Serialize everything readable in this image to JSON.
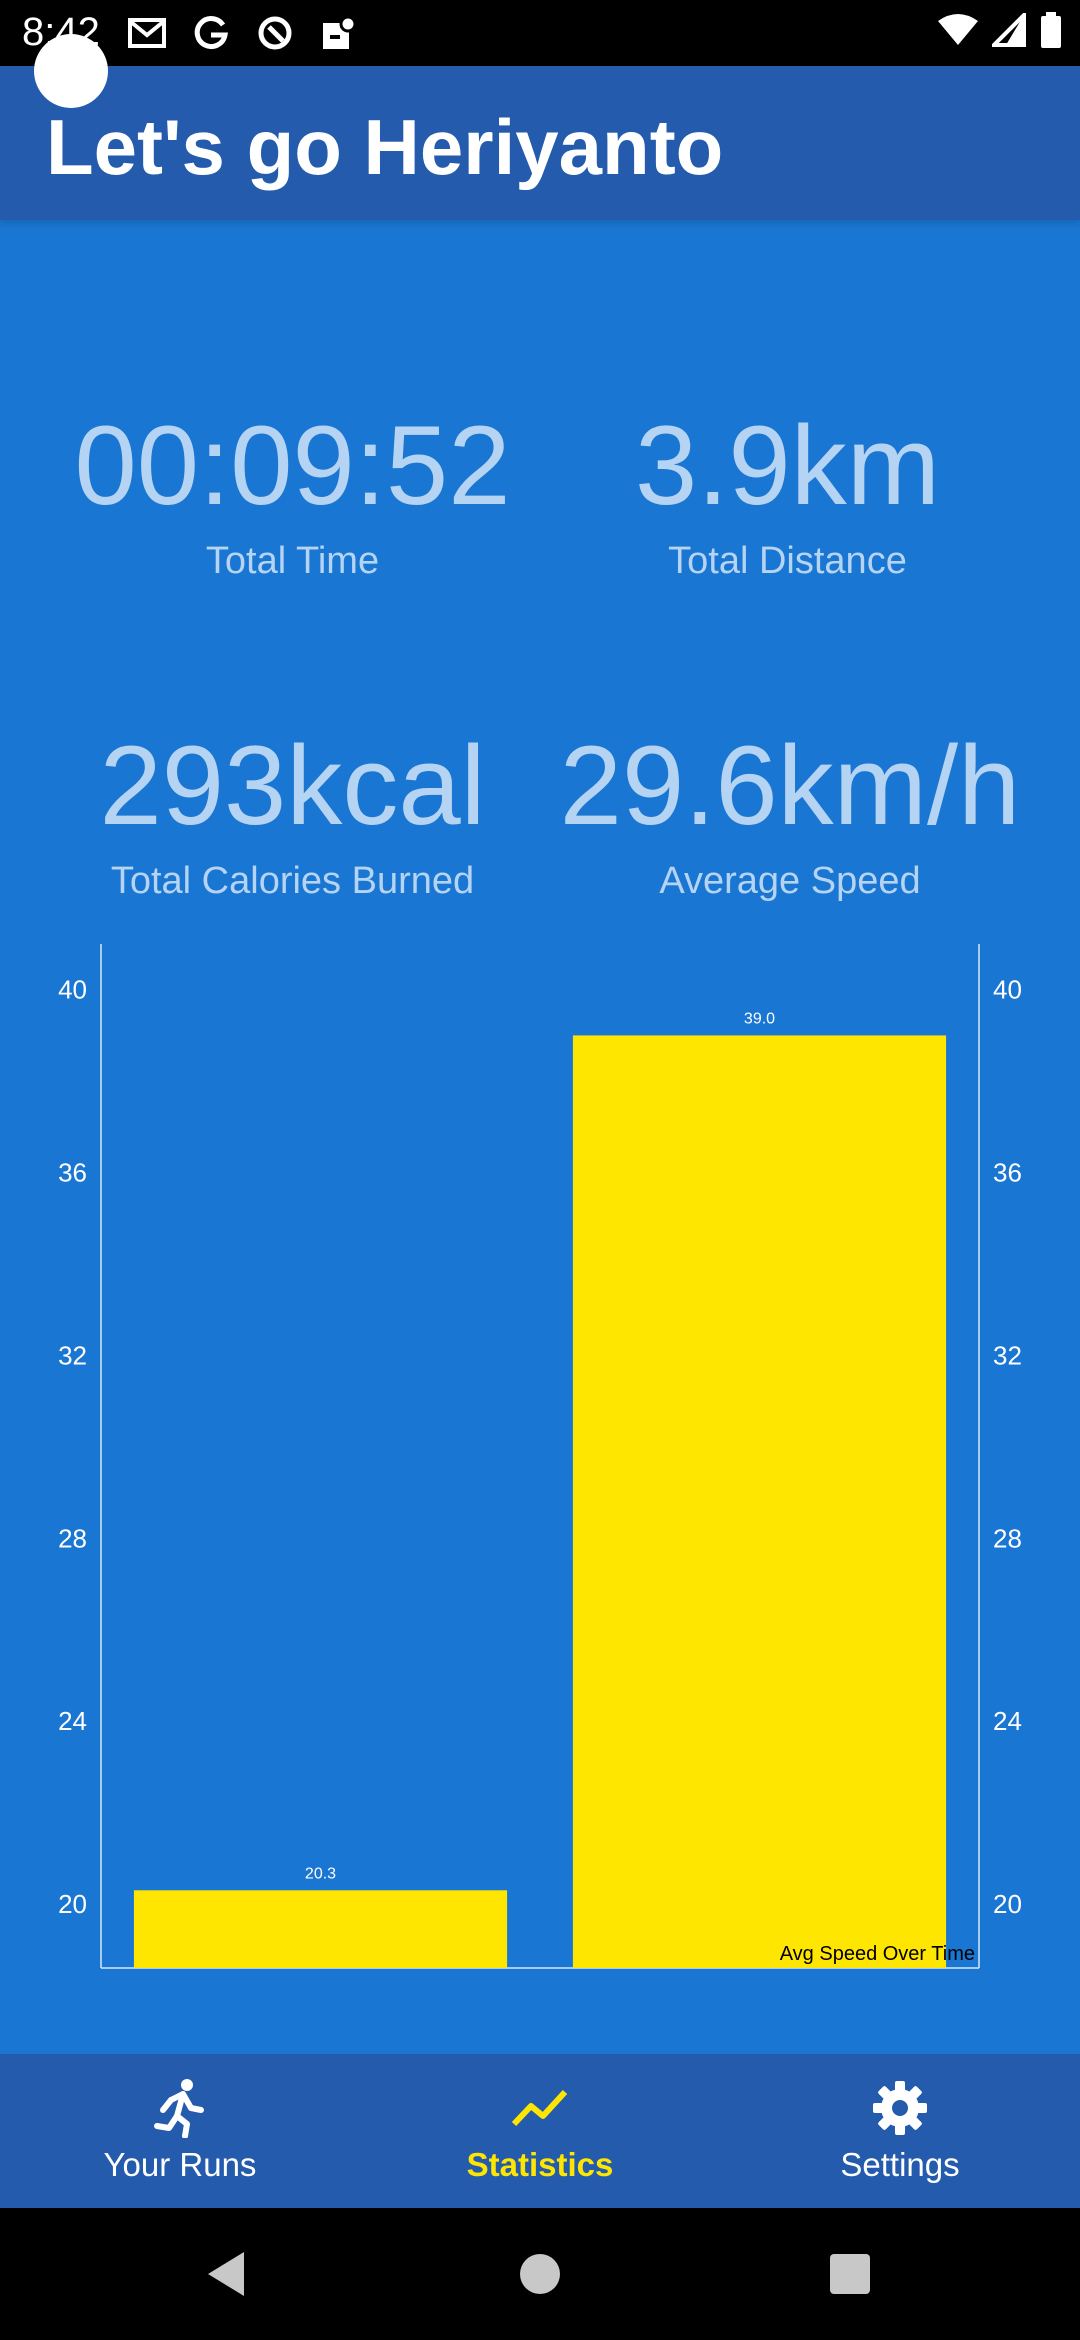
{
  "status_bar": {
    "time": "8:42",
    "left_icons": [
      "gmail-icon",
      "google-icon",
      "circle-app-icon",
      "maps-icon"
    ],
    "right_icons": [
      "wifi-icon",
      "signal-icon",
      "battery-icon"
    ]
  },
  "app_bar": {
    "title": "Let's go Heriyanto"
  },
  "stats": {
    "total_time": {
      "value": "00:09:52",
      "label": "Total Time"
    },
    "total_distance": {
      "value": "3.9km",
      "label": "Total Distance"
    },
    "total_calories": {
      "value": "293kcal",
      "label": "Total Calories Burned"
    },
    "average_speed": {
      "value": "29.6km/h",
      "label": "Average Speed"
    }
  },
  "chart_data": {
    "type": "bar",
    "values": [
      20.3,
      39.0
    ],
    "value_labels": [
      "20.3",
      "39.0"
    ],
    "description": "Avg Speed Over Time",
    "y_ticks": [
      20,
      24,
      28,
      32,
      36,
      40
    ],
    "ylim": [
      18.6,
      41
    ],
    "axis_left": true,
    "axis_right": true,
    "bar_color": "#ffe600"
  },
  "bottom_nav": {
    "items": [
      {
        "label": "Your Runs",
        "icon": "running-icon",
        "active": false
      },
      {
        "label": "Statistics",
        "icon": "trending-line-icon",
        "active": true
      },
      {
        "label": "Settings",
        "icon": "gear-icon",
        "active": false
      }
    ]
  },
  "system_nav": {
    "buttons": [
      "back-icon",
      "home-icon",
      "recents-icon"
    ]
  },
  "colors": {
    "background": "#1976d2",
    "app_bar": "#245bad",
    "stat_text": "#b5d3f2",
    "accent": "#ffe600"
  }
}
